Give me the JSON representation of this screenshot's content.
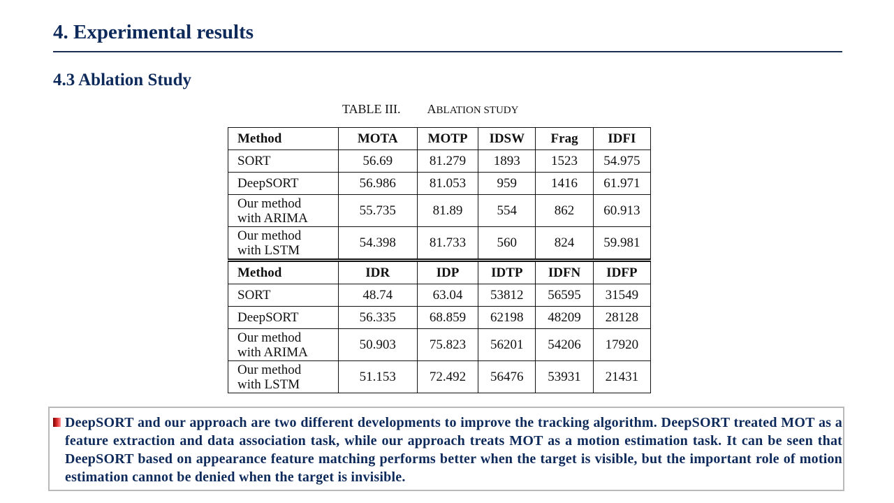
{
  "slide": {
    "title": "4. Experimental results",
    "section": "4.3 Ablation Study"
  },
  "table": {
    "caption_label": "TABLE III.",
    "caption_first_letter": "A",
    "caption_rest": "BLATION STUDY",
    "block1": {
      "headers": [
        "Method",
        "MOTA",
        "MOTP",
        "IDSW",
        "Frag",
        "IDFI"
      ],
      "rows": [
        {
          "method_l1": "SORT",
          "method_l2": "",
          "cells": [
            "56.69",
            "81.279",
            "1893",
            "1523",
            "54.975"
          ]
        },
        {
          "method_l1": "DeepSORT",
          "method_l2": "",
          "cells": [
            "56.986",
            "81.053",
            "959",
            "1416",
            "61.971"
          ]
        },
        {
          "method_l1": "Our method",
          "method_l2": "with ARIMA",
          "cells": [
            "55.735",
            "81.89",
            "554",
            "862",
            "60.913"
          ]
        },
        {
          "method_l1": "Our method",
          "method_l2": "with LSTM",
          "cells": [
            "54.398",
            "81.733",
            "560",
            "824",
            "59.981"
          ]
        }
      ]
    },
    "block2": {
      "headers": [
        "Method",
        "IDR",
        "IDP",
        "IDTP",
        "IDFN",
        "IDFP"
      ],
      "rows": [
        {
          "method_l1": "SORT",
          "method_l2": "",
          "cells": [
            "48.74",
            "63.04",
            "53812",
            "56595",
            "31549"
          ]
        },
        {
          "method_l1": "DeepSORT",
          "method_l2": "",
          "cells": [
            "56.335",
            "68.859",
            "62198",
            "48209",
            "28128"
          ]
        },
        {
          "method_l1": "Our method",
          "method_l2": "with ARIMA",
          "cells": [
            "50.903",
            "75.823",
            "56201",
            "54206",
            "17920"
          ]
        },
        {
          "method_l1": "Our method",
          "method_l2": "with LSTM",
          "cells": [
            "51.153",
            "72.492",
            "56476",
            "53931",
            "21431"
          ]
        }
      ]
    }
  },
  "note": {
    "text": "DeepSORT and our approach are two different developments to improve the tracking algorithm. DeepSORT treated MOT as a feature extraction and data association task, while our approach treats MOT as a motion estimation task. It can be seen that DeepSORT based on appearance feature matching performs better when the target is visible, but the important role of motion estimation cannot be denied when the target is invisible."
  },
  "colors": {
    "title": "#0d2a5b",
    "rule": "#1c2f52",
    "bullet": "#e23030",
    "box_border": "#b9b9b9"
  }
}
